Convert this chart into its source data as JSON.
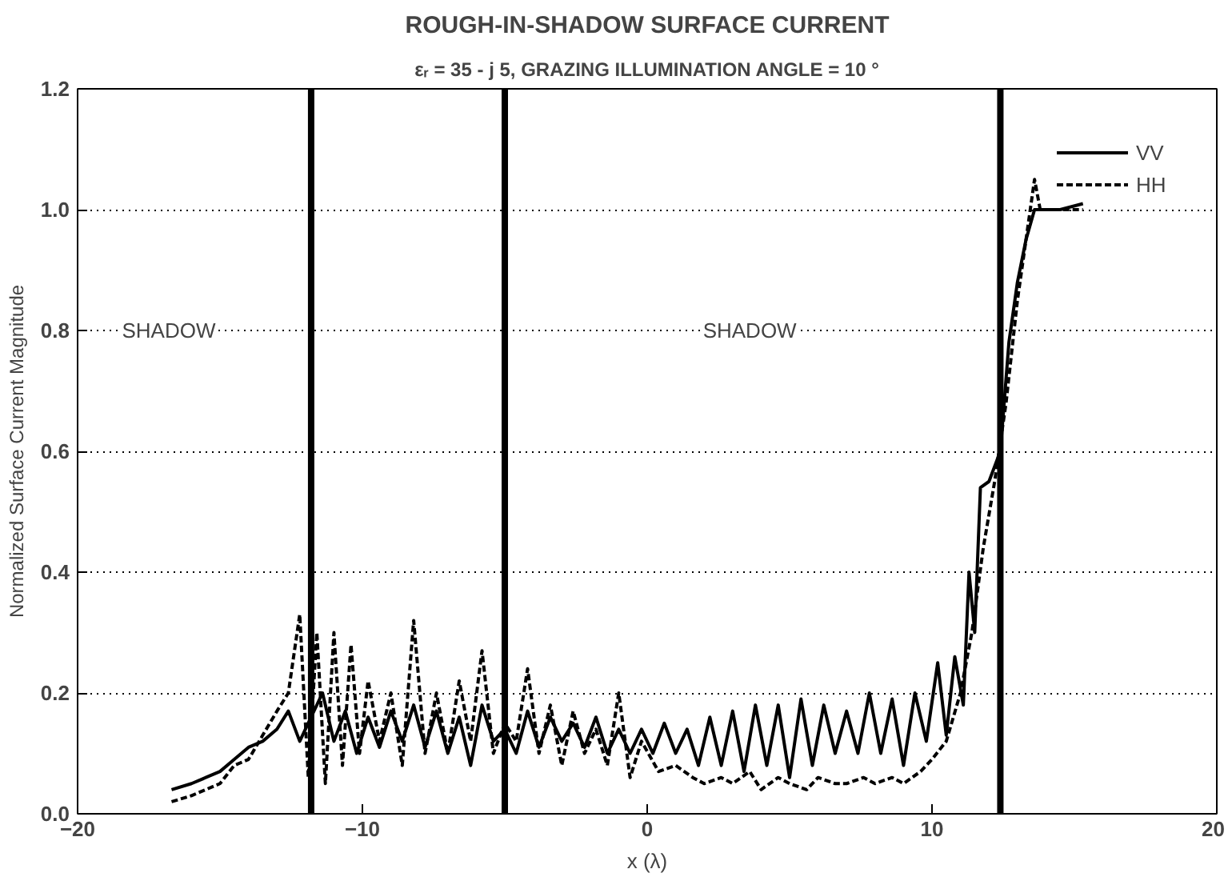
{
  "chart_data": {
    "type": "line",
    "title": "ROUGH-IN-SHADOW SURFACE CURRENT",
    "subtitle": "εᵣ = 35 - j 5, GRAZING ILLUMINATION ANGLE = 10 °",
    "xlabel": "x (λ)",
    "ylabel": "Normalized Surface Current Magnitude",
    "xlim": [
      -20,
      20
    ],
    "xticks": [
      -20,
      -10,
      0,
      10,
      20
    ],
    "ylim": [
      0,
      1.2
    ],
    "yticks": [
      {
        "value": 0,
        "label": "0.0"
      },
      {
        "value": 0.2,
        "label": "0.2"
      },
      {
        "value": 0.4,
        "label": "0.4"
      },
      {
        "value": 0.6,
        "label": "0.6"
      },
      {
        "value": 0.8,
        "label": "0.8"
      },
      {
        "value": 1.0,
        "label": "1.0"
      },
      {
        "value": 1.2,
        "label": "1.2"
      }
    ],
    "grid": "y",
    "legend": "top right",
    "marker": "none",
    "series": [
      {
        "name": "VV",
        "color": "#000000",
        "line_style": "solid",
        "x": [
          -16.7,
          -16,
          -15.5,
          -15,
          -14.5,
          -14,
          -13.5,
          -13,
          -12.6,
          -12.2,
          -11.8,
          -11.4,
          -11,
          -10.6,
          -10.2,
          -9.8,
          -9.4,
          -9,
          -8.6,
          -8.2,
          -7.8,
          -7.4,
          -7,
          -6.6,
          -6.2,
          -5.8,
          -5.4,
          -5,
          -4.6,
          -4.2,
          -3.8,
          -3.4,
          -3,
          -2.6,
          -2.2,
          -1.8,
          -1.4,
          -1,
          -0.6,
          -0.2,
          0.2,
          0.6,
          1,
          1.4,
          1.8,
          2.2,
          2.6,
          3,
          3.4,
          3.8,
          4.2,
          4.6,
          5,
          5.4,
          5.8,
          6.2,
          6.6,
          7,
          7.4,
          7.8,
          8.2,
          8.6,
          9,
          9.4,
          9.8,
          10.2,
          10.5,
          10.8,
          11.1,
          11.3,
          11.5,
          11.7,
          12,
          12.4,
          12.7,
          13,
          13.3,
          13.6,
          14.5,
          15.3
        ],
        "values": [
          0.04,
          0.05,
          0.06,
          0.07,
          0.09,
          0.11,
          0.12,
          0.14,
          0.17,
          0.12,
          0.16,
          0.2,
          0.12,
          0.17,
          0.1,
          0.16,
          0.11,
          0.17,
          0.12,
          0.18,
          0.11,
          0.17,
          0.1,
          0.16,
          0.08,
          0.18,
          0.12,
          0.14,
          0.1,
          0.17,
          0.11,
          0.16,
          0.12,
          0.15,
          0.11,
          0.16,
          0.1,
          0.14,
          0.1,
          0.14,
          0.1,
          0.15,
          0.1,
          0.14,
          0.08,
          0.16,
          0.08,
          0.17,
          0.07,
          0.18,
          0.08,
          0.18,
          0.06,
          0.19,
          0.08,
          0.18,
          0.1,
          0.17,
          0.1,
          0.2,
          0.1,
          0.19,
          0.08,
          0.2,
          0.12,
          0.25,
          0.13,
          0.26,
          0.18,
          0.4,
          0.3,
          0.54,
          0.55,
          0.6,
          0.78,
          0.88,
          0.95,
          1.0,
          1.0,
          1.01
        ]
      },
      {
        "name": "HH",
        "color": "#000000",
        "line_style": "dashed",
        "x": [
          -16.7,
          -16,
          -15,
          -14.5,
          -14,
          -13.5,
          -13,
          -12.6,
          -12.2,
          -11.9,
          -11.6,
          -11.3,
          -11,
          -10.7,
          -10.4,
          -10.1,
          -9.8,
          -9.4,
          -9,
          -8.6,
          -8.2,
          -7.8,
          -7.4,
          -7,
          -6.6,
          -6.2,
          -5.8,
          -5.4,
          -5,
          -4.6,
          -4.2,
          -3.8,
          -3.4,
          -3,
          -2.6,
          -2.2,
          -1.8,
          -1.4,
          -1,
          -0.6,
          -0.2,
          0.4,
          1,
          1.6,
          2,
          2.6,
          3,
          3.6,
          4,
          4.6,
          5,
          5.6,
          6,
          6.6,
          7,
          7.6,
          8,
          8.6,
          9,
          9.6,
          10,
          10.5,
          11,
          11.4,
          11.8,
          12.2,
          12.6,
          13,
          13.3,
          13.6,
          13.8,
          15.3
        ],
        "values": [
          0.02,
          0.03,
          0.05,
          0.08,
          0.09,
          0.13,
          0.17,
          0.2,
          0.33,
          0.06,
          0.3,
          0.05,
          0.3,
          0.08,
          0.28,
          0.1,
          0.22,
          0.12,
          0.2,
          0.08,
          0.32,
          0.1,
          0.2,
          0.1,
          0.22,
          0.12,
          0.27,
          0.1,
          0.15,
          0.12,
          0.24,
          0.1,
          0.18,
          0.08,
          0.17,
          0.1,
          0.14,
          0.08,
          0.2,
          0.06,
          0.12,
          0.07,
          0.08,
          0.06,
          0.05,
          0.06,
          0.05,
          0.07,
          0.04,
          0.06,
          0.05,
          0.04,
          0.06,
          0.05,
          0.05,
          0.06,
          0.05,
          0.06,
          0.05,
          0.07,
          0.09,
          0.12,
          0.2,
          0.3,
          0.44,
          0.55,
          0.68,
          0.85,
          0.95,
          1.05,
          1.0,
          1.0
        ]
      }
    ],
    "ref_lines": [
      {
        "axis": "x",
        "value": -11.8,
        "color": "#000000"
      },
      {
        "axis": "x",
        "value": -5,
        "color": "#000000"
      },
      {
        "axis": "x",
        "value": 12.4,
        "color": "#000000"
      }
    ],
    "annotations": [
      "SHADOW",
      "SHADOW"
    ]
  }
}
